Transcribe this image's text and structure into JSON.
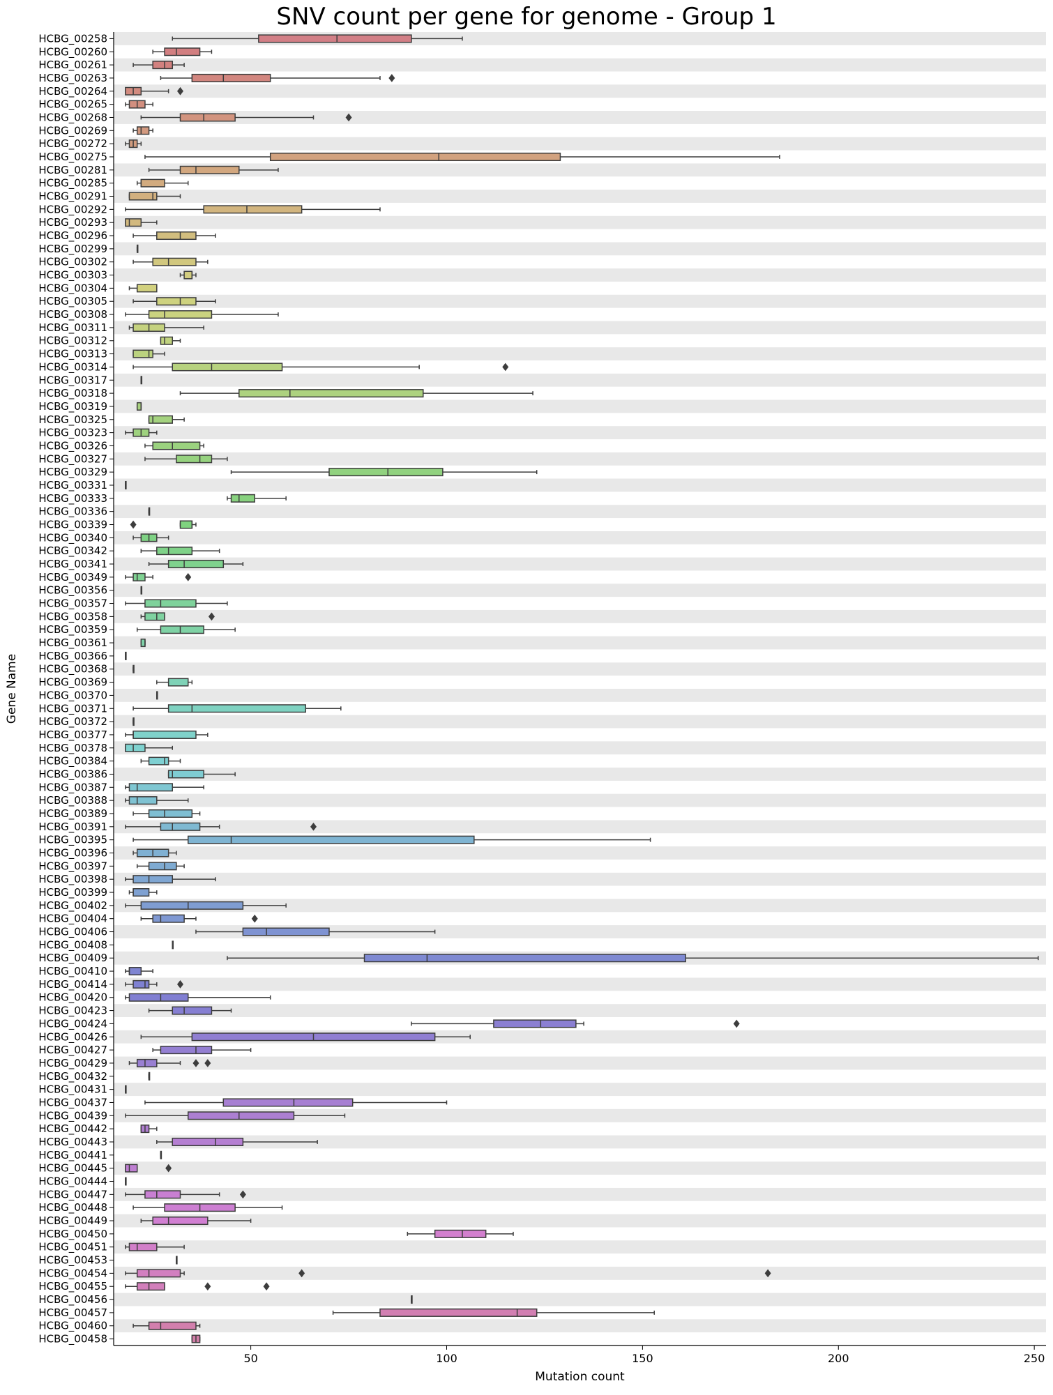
{
  "chart_data": {
    "type": "box",
    "orientation": "horizontal",
    "title": "SNV count per gene for genome - Group 1",
    "xlabel": "Mutation count",
    "ylabel": "Gene Name",
    "xlim": [
      15,
      253
    ],
    "xticks": [
      50,
      100,
      150,
      200,
      250
    ],
    "row_banding": "alternating light gray",
    "boxes": [
      {
        "gene": "HCBG_00258",
        "whislo": 30,
        "q1": 52,
        "med": 72,
        "q3": 91,
        "whishi": 104,
        "fliers": []
      },
      {
        "gene": "HCBG_00260",
        "whislo": 25,
        "q1": 28,
        "med": 31,
        "q3": 37,
        "whishi": 40,
        "fliers": []
      },
      {
        "gene": "HCBG_00261",
        "whislo": 20,
        "q1": 25,
        "med": 28,
        "q3": 30,
        "whishi": 33,
        "fliers": []
      },
      {
        "gene": "HCBG_00263",
        "whislo": 27,
        "q1": 35,
        "med": 43,
        "q3": 55,
        "whishi": 83,
        "fliers": [
          86
        ]
      },
      {
        "gene": "HCBG_00264",
        "whislo": 18,
        "q1": 18,
        "med": 20,
        "q3": 22,
        "whishi": 29,
        "fliers": [
          32
        ]
      },
      {
        "gene": "HCBG_00265",
        "whislo": 18,
        "q1": 19,
        "med": 21,
        "q3": 23,
        "whishi": 25,
        "fliers": []
      },
      {
        "gene": "HCBG_00268",
        "whislo": 22,
        "q1": 32,
        "med": 38,
        "q3": 46,
        "whishi": 66,
        "fliers": [
          75
        ]
      },
      {
        "gene": "HCBG_00269",
        "whislo": 20,
        "q1": 21,
        "med": 22,
        "q3": 24,
        "whishi": 25,
        "fliers": []
      },
      {
        "gene": "HCBG_00272",
        "whislo": 18,
        "q1": 19,
        "med": 20,
        "q3": 21,
        "whishi": 22,
        "fliers": []
      },
      {
        "gene": "HCBG_00275",
        "whislo": 23,
        "q1": 55,
        "med": 98,
        "q3": 129,
        "whishi": 185,
        "fliers": []
      },
      {
        "gene": "HCBG_00281",
        "whislo": 24,
        "q1": 32,
        "med": 36,
        "q3": 47,
        "whishi": 57,
        "fliers": []
      },
      {
        "gene": "HCBG_00285",
        "whislo": 21,
        "q1": 22,
        "med": 22,
        "q3": 28,
        "whishi": 34,
        "fliers": []
      },
      {
        "gene": "HCBG_00291",
        "whislo": 19,
        "q1": 19,
        "med": 25,
        "q3": 26,
        "whishi": 32,
        "fliers": []
      },
      {
        "gene": "HCBG_00292",
        "whislo": 18,
        "q1": 38,
        "med": 49,
        "q3": 63,
        "whishi": 83,
        "fliers": []
      },
      {
        "gene": "HCBG_00293",
        "whislo": 18,
        "q1": 18,
        "med": 19,
        "q3": 22,
        "whishi": 26,
        "fliers": []
      },
      {
        "gene": "HCBG_00296",
        "whislo": 20,
        "q1": 26,
        "med": 32,
        "q3": 36,
        "whishi": 41,
        "fliers": []
      },
      {
        "gene": "HCBG_00299",
        "whislo": 21,
        "q1": 21,
        "med": 21,
        "q3": 21,
        "whishi": 21,
        "fliers": []
      },
      {
        "gene": "HCBG_00302",
        "whislo": 20,
        "q1": 25,
        "med": 29,
        "q3": 36,
        "whishi": 39,
        "fliers": []
      },
      {
        "gene": "HCBG_00303",
        "whislo": 32,
        "q1": 33,
        "med": 35,
        "q3": 35,
        "whishi": 36,
        "fliers": []
      },
      {
        "gene": "HCBG_00304",
        "whislo": 19,
        "q1": 21,
        "med": 21,
        "q3": 26,
        "whishi": 26,
        "fliers": []
      },
      {
        "gene": "HCBG_00305",
        "whislo": 20,
        "q1": 26,
        "med": 32,
        "q3": 36,
        "whishi": 41,
        "fliers": []
      },
      {
        "gene": "HCBG_00308",
        "whislo": 18,
        "q1": 24,
        "med": 28,
        "q3": 40,
        "whishi": 57,
        "fliers": []
      },
      {
        "gene": "HCBG_00311",
        "whislo": 19,
        "q1": 20,
        "med": 24,
        "q3": 28,
        "whishi": 38,
        "fliers": []
      },
      {
        "gene": "HCBG_00312",
        "whislo": 27,
        "q1": 27,
        "med": 28,
        "q3": 30,
        "whishi": 32,
        "fliers": []
      },
      {
        "gene": "HCBG_00313",
        "whislo": 20,
        "q1": 20,
        "med": 24,
        "q3": 25,
        "whishi": 28,
        "fliers": []
      },
      {
        "gene": "HCBG_00314",
        "whislo": 20,
        "q1": 30,
        "med": 40,
        "q3": 58,
        "whishi": 93,
        "fliers": [
          115
        ]
      },
      {
        "gene": "HCBG_00317",
        "whislo": 22,
        "q1": 22,
        "med": 22,
        "q3": 22,
        "whishi": 22,
        "fliers": []
      },
      {
        "gene": "HCBG_00318",
        "whislo": 32,
        "q1": 47,
        "med": 60,
        "q3": 94,
        "whishi": 122,
        "fliers": []
      },
      {
        "gene": "HCBG_00319",
        "whislo": 21,
        "q1": 21,
        "med": 22,
        "q3": 22,
        "whishi": 22,
        "fliers": []
      },
      {
        "gene": "HCBG_00325",
        "whislo": 24,
        "q1": 24,
        "med": 25,
        "q3": 30,
        "whishi": 33,
        "fliers": []
      },
      {
        "gene": "HCBG_00323",
        "whislo": 18,
        "q1": 20,
        "med": 22,
        "q3": 24,
        "whishi": 26,
        "fliers": []
      },
      {
        "gene": "HCBG_00326",
        "whislo": 23,
        "q1": 25,
        "med": 30,
        "q3": 37,
        "whishi": 38,
        "fliers": []
      },
      {
        "gene": "HCBG_00327",
        "whislo": 23,
        "q1": 31,
        "med": 37,
        "q3": 40,
        "whishi": 44,
        "fliers": []
      },
      {
        "gene": "HCBG_00329",
        "whislo": 45,
        "q1": 70,
        "med": 85,
        "q3": 99,
        "whishi": 123,
        "fliers": []
      },
      {
        "gene": "HCBG_00331",
        "whislo": 18,
        "q1": 18,
        "med": 18,
        "q3": 18,
        "whishi": 18,
        "fliers": []
      },
      {
        "gene": "HCBG_00333",
        "whislo": 44,
        "q1": 45,
        "med": 47,
        "q3": 51,
        "whishi": 59,
        "fliers": []
      },
      {
        "gene": "HCBG_00336",
        "whislo": 24,
        "q1": 24,
        "med": 24,
        "q3": 24,
        "whishi": 24,
        "fliers": []
      },
      {
        "gene": "HCBG_00339",
        "whislo": 32,
        "q1": 32,
        "med": 35,
        "q3": 35,
        "whishi": 36,
        "fliers": [
          20
        ]
      },
      {
        "gene": "HCBG_00340",
        "whislo": 20,
        "q1": 22,
        "med": 24,
        "q3": 26,
        "whishi": 29,
        "fliers": []
      },
      {
        "gene": "HCBG_00342",
        "whislo": 22,
        "q1": 26,
        "med": 29,
        "q3": 35,
        "whishi": 42,
        "fliers": []
      },
      {
        "gene": "HCBG_00341",
        "whislo": 24,
        "q1": 29,
        "med": 33,
        "q3": 43,
        "whishi": 48,
        "fliers": []
      },
      {
        "gene": "HCBG_00349",
        "whislo": 18,
        "q1": 20,
        "med": 21,
        "q3": 23,
        "whishi": 25,
        "fliers": [
          34
        ]
      },
      {
        "gene": "HCBG_00356",
        "whislo": 22,
        "q1": 22,
        "med": 22,
        "q3": 22,
        "whishi": 22,
        "fliers": []
      },
      {
        "gene": "HCBG_00357",
        "whislo": 18,
        "q1": 23,
        "med": 27,
        "q3": 36,
        "whishi": 44,
        "fliers": []
      },
      {
        "gene": "HCBG_00358",
        "whislo": 22,
        "q1": 23,
        "med": 26,
        "q3": 28,
        "whishi": 28,
        "fliers": [
          40
        ]
      },
      {
        "gene": "HCBG_00359",
        "whislo": 21,
        "q1": 27,
        "med": 32,
        "q3": 38,
        "whishi": 46,
        "fliers": []
      },
      {
        "gene": "HCBG_00361",
        "whislo": 22,
        "q1": 22,
        "med": 23,
        "q3": 23,
        "whishi": 23,
        "fliers": []
      },
      {
        "gene": "HCBG_00366",
        "whislo": 18,
        "q1": 18,
        "med": 18,
        "q3": 18,
        "whishi": 18,
        "fliers": []
      },
      {
        "gene": "HCBG_00368",
        "whislo": 20,
        "q1": 20,
        "med": 20,
        "q3": 20,
        "whishi": 20,
        "fliers": []
      },
      {
        "gene": "HCBG_00369",
        "whislo": 26,
        "q1": 29,
        "med": 34,
        "q3": 34,
        "whishi": 35,
        "fliers": []
      },
      {
        "gene": "HCBG_00370",
        "whislo": 26,
        "q1": 26,
        "med": 26,
        "q3": 26,
        "whishi": 26,
        "fliers": []
      },
      {
        "gene": "HCBG_00371",
        "whislo": 20,
        "q1": 29,
        "med": 35,
        "q3": 64,
        "whishi": 73,
        "fliers": []
      },
      {
        "gene": "HCBG_00372",
        "whislo": 20,
        "q1": 20,
        "med": 20,
        "q3": 20,
        "whishi": 20,
        "fliers": []
      },
      {
        "gene": "HCBG_00377",
        "whislo": 18,
        "q1": 20,
        "med": 20,
        "q3": 36,
        "whishi": 39,
        "fliers": []
      },
      {
        "gene": "HCBG_00378",
        "whislo": 18,
        "q1": 18,
        "med": 20,
        "q3": 23,
        "whishi": 30,
        "fliers": []
      },
      {
        "gene": "HCBG_00384",
        "whislo": 22,
        "q1": 24,
        "med": 28,
        "q3": 29,
        "whishi": 32,
        "fliers": []
      },
      {
        "gene": "HCBG_00386",
        "whislo": 29,
        "q1": 29,
        "med": 30,
        "q3": 38,
        "whishi": 46,
        "fliers": []
      },
      {
        "gene": "HCBG_00387",
        "whislo": 18,
        "q1": 19,
        "med": 21,
        "q3": 30,
        "whishi": 38,
        "fliers": []
      },
      {
        "gene": "HCBG_00388",
        "whislo": 18,
        "q1": 19,
        "med": 21,
        "q3": 26,
        "whishi": 34,
        "fliers": []
      },
      {
        "gene": "HCBG_00389",
        "whislo": 20,
        "q1": 24,
        "med": 28,
        "q3": 35,
        "whishi": 37,
        "fliers": []
      },
      {
        "gene": "HCBG_00391",
        "whislo": 18,
        "q1": 27,
        "med": 30,
        "q3": 37,
        "whishi": 42,
        "fliers": [
          66
        ]
      },
      {
        "gene": "HCBG_00395",
        "whislo": 20,
        "q1": 34,
        "med": 45,
        "q3": 107,
        "whishi": 152,
        "fliers": []
      },
      {
        "gene": "HCBG_00396",
        "whislo": 20,
        "q1": 21,
        "med": 25,
        "q3": 29,
        "whishi": 31,
        "fliers": []
      },
      {
        "gene": "HCBG_00397",
        "whislo": 21,
        "q1": 24,
        "med": 28,
        "q3": 31,
        "whishi": 33,
        "fliers": []
      },
      {
        "gene": "HCBG_00398",
        "whislo": 18,
        "q1": 20,
        "med": 24,
        "q3": 30,
        "whishi": 41,
        "fliers": []
      },
      {
        "gene": "HCBG_00399",
        "whislo": 19,
        "q1": 20,
        "med": 20,
        "q3": 24,
        "whishi": 26,
        "fliers": []
      },
      {
        "gene": "HCBG_00402",
        "whislo": 18,
        "q1": 22,
        "med": 34,
        "q3": 48,
        "whishi": 59,
        "fliers": []
      },
      {
        "gene": "HCBG_00404",
        "whislo": 22,
        "q1": 25,
        "med": 27,
        "q3": 33,
        "whishi": 36,
        "fliers": [
          51
        ]
      },
      {
        "gene": "HCBG_00406",
        "whislo": 36,
        "q1": 48,
        "med": 54,
        "q3": 70,
        "whishi": 97,
        "fliers": []
      },
      {
        "gene": "HCBG_00408",
        "whislo": 30,
        "q1": 30,
        "med": 30,
        "q3": 30,
        "whishi": 30,
        "fliers": []
      },
      {
        "gene": "HCBG_00409",
        "whislo": 44,
        "q1": 79,
        "med": 95,
        "q3": 161,
        "whishi": 251,
        "fliers": []
      },
      {
        "gene": "HCBG_00410",
        "whislo": 18,
        "q1": 19,
        "med": 19,
        "q3": 22,
        "whishi": 25,
        "fliers": []
      },
      {
        "gene": "HCBG_00414",
        "whislo": 18,
        "q1": 20,
        "med": 23,
        "q3": 24,
        "whishi": 26,
        "fliers": [
          32
        ]
      },
      {
        "gene": "HCBG_00420",
        "whislo": 18,
        "q1": 19,
        "med": 27,
        "q3": 34,
        "whishi": 55,
        "fliers": []
      },
      {
        "gene": "HCBG_00423",
        "whislo": 24,
        "q1": 30,
        "med": 33,
        "q3": 40,
        "whishi": 45,
        "fliers": []
      },
      {
        "gene": "HCBG_00424",
        "whislo": 91,
        "q1": 112,
        "med": 124,
        "q3": 133,
        "whishi": 135,
        "fliers": [
          174
        ]
      },
      {
        "gene": "HCBG_00426",
        "whislo": 22,
        "q1": 35,
        "med": 66,
        "q3": 97,
        "whishi": 106,
        "fliers": []
      },
      {
        "gene": "HCBG_00427",
        "whislo": 25,
        "q1": 27,
        "med": 36,
        "q3": 40,
        "whishi": 50,
        "fliers": []
      },
      {
        "gene": "HCBG_00429",
        "whislo": 19,
        "q1": 21,
        "med": 23,
        "q3": 26,
        "whishi": 32,
        "fliers": [
          36,
          39
        ]
      },
      {
        "gene": "HCBG_00432",
        "whislo": 24,
        "q1": 24,
        "med": 24,
        "q3": 24,
        "whishi": 24,
        "fliers": []
      },
      {
        "gene": "HCBG_00431",
        "whislo": 18,
        "q1": 18,
        "med": 18,
        "q3": 18,
        "whishi": 18,
        "fliers": []
      },
      {
        "gene": "HCBG_00437",
        "whislo": 23,
        "q1": 43,
        "med": 61,
        "q3": 76,
        "whishi": 100,
        "fliers": []
      },
      {
        "gene": "HCBG_00439",
        "whislo": 18,
        "q1": 34,
        "med": 47,
        "q3": 61,
        "whishi": 74,
        "fliers": []
      },
      {
        "gene": "HCBG_00442",
        "whislo": 22,
        "q1": 22,
        "med": 23,
        "q3": 24,
        "whishi": 26,
        "fliers": []
      },
      {
        "gene": "HCBG_00443",
        "whislo": 26,
        "q1": 30,
        "med": 41,
        "q3": 48,
        "whishi": 67,
        "fliers": []
      },
      {
        "gene": "HCBG_00441",
        "whislo": 27,
        "q1": 27,
        "med": 27,
        "q3": 27,
        "whishi": 27,
        "fliers": []
      },
      {
        "gene": "HCBG_00445",
        "whislo": 18,
        "q1": 18,
        "med": 19,
        "q3": 21,
        "whishi": 21,
        "fliers": [
          29
        ]
      },
      {
        "gene": "HCBG_00444",
        "whislo": 18,
        "q1": 18,
        "med": 18,
        "q3": 18,
        "whishi": 18,
        "fliers": []
      },
      {
        "gene": "HCBG_00447",
        "whislo": 18,
        "q1": 23,
        "med": 26,
        "q3": 32,
        "whishi": 42,
        "fliers": [
          48
        ]
      },
      {
        "gene": "HCBG_00448",
        "whislo": 20,
        "q1": 28,
        "med": 37,
        "q3": 46,
        "whishi": 58,
        "fliers": []
      },
      {
        "gene": "HCBG_00449",
        "whislo": 22,
        "q1": 25,
        "med": 29,
        "q3": 39,
        "whishi": 50,
        "fliers": []
      },
      {
        "gene": "HCBG_00450",
        "whislo": 90,
        "q1": 97,
        "med": 104,
        "q3": 110,
        "whishi": 117,
        "fliers": []
      },
      {
        "gene": "HCBG_00451",
        "whislo": 18,
        "q1": 19,
        "med": 21,
        "q3": 26,
        "whishi": 33,
        "fliers": []
      },
      {
        "gene": "HCBG_00453",
        "whislo": 31,
        "q1": 31,
        "med": 31,
        "q3": 31,
        "whishi": 31,
        "fliers": []
      },
      {
        "gene": "HCBG_00454",
        "whislo": 18,
        "q1": 21,
        "med": 24,
        "q3": 32,
        "whishi": 33,
        "fliers": [
          63,
          182
        ]
      },
      {
        "gene": "HCBG_00455",
        "whislo": 18,
        "q1": 21,
        "med": 24,
        "q3": 28,
        "whishi": 28,
        "fliers": [
          39,
          54
        ]
      },
      {
        "gene": "HCBG_00456",
        "whislo": 91,
        "q1": 91,
        "med": 91,
        "q3": 91,
        "whishi": 91,
        "fliers": []
      },
      {
        "gene": "HCBG_00457",
        "whislo": 71,
        "q1": 83,
        "med": 118,
        "q3": 123,
        "whishi": 153,
        "fliers": []
      },
      {
        "gene": "HCBG_00460",
        "whislo": 20,
        "q1": 24,
        "med": 27,
        "q3": 36,
        "whishi": 37,
        "fliers": []
      },
      {
        "gene": "HCBG_00458",
        "whislo": 35,
        "q1": 35,
        "med": 36,
        "q3": 37,
        "whishi": 37,
        "fliers": []
      }
    ]
  }
}
